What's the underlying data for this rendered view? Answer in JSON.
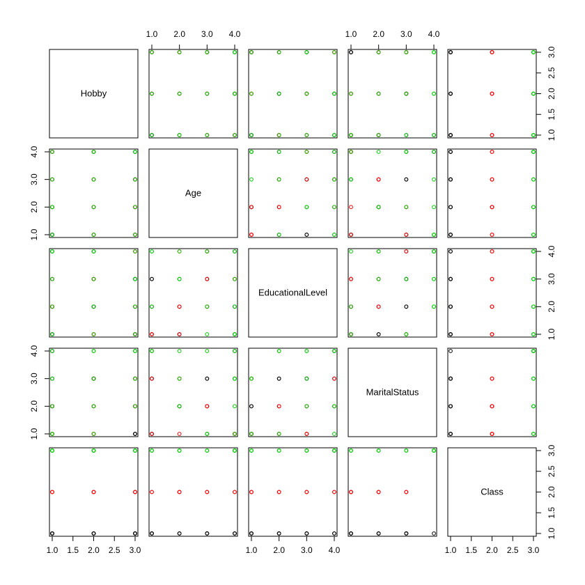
{
  "chart_data": {
    "type": "scatter",
    "subtype": "scatterplot-matrix",
    "variables": [
      "Hobby",
      "Age",
      "EducationalLevel",
      "MaritalStatus",
      "Class"
    ],
    "ranges": {
      "Hobby": [
        1,
        3
      ],
      "Age": [
        1,
        4
      ],
      "EducationalLevel": [
        1,
        4
      ],
      "MaritalStatus": [
        1,
        4
      ],
      "Class": [
        1,
        3
      ]
    },
    "ticks": {
      "Hobby": [
        "1.0",
        "1.5",
        "2.0",
        "2.5",
        "3.0"
      ],
      "Age": [
        "1.0",
        "2.0",
        "3.0",
        "4.0"
      ],
      "EducationalLevel": [
        "1.0",
        "2.0",
        "3.0",
        "4.0"
      ],
      "MaritalStatus": [
        "1.0",
        "2.0",
        "3.0",
        "4.0"
      ],
      "Class": [
        "1.0",
        "1.5",
        "2.0",
        "2.5",
        "3.0"
      ]
    },
    "class_colors": {
      "1": "#000000",
      "2": "#ff0000",
      "3": "#00cd00"
    },
    "points": [
      {
        "Hobby": 1,
        "Age": 1,
        "EducationalLevel": 1,
        "MaritalStatus": 1,
        "Class": 1
      },
      {
        "Hobby": 2,
        "Age": 2,
        "EducationalLevel": 2,
        "MaritalStatus": 2,
        "Class": 1
      },
      {
        "Hobby": 3,
        "Age": 3,
        "EducationalLevel": 3,
        "MaritalStatus": 3,
        "Class": 1
      },
      {
        "Hobby": 3,
        "Age": 3,
        "EducationalLevel": 2,
        "MaritalStatus": 1,
        "Class": 1
      },
      {
        "Hobby": 2,
        "Age": 1,
        "EducationalLevel": 3,
        "MaritalStatus": 3,
        "Class": 1
      },
      {
        "Hobby": 1,
        "Age": 2,
        "EducationalLevel": 1,
        "MaritalStatus": 2,
        "Class": 1
      },
      {
        "Hobby": 3,
        "Age": 1,
        "EducationalLevel": 3,
        "MaritalStatus": 1,
        "Class": 1
      },
      {
        "Hobby": 1,
        "Age": 4,
        "EducationalLevel": 4,
        "MaritalStatus": 4,
        "Class": 1
      },
      {
        "Hobby": 1,
        "Age": 1,
        "EducationalLevel": 2,
        "MaritalStatus": 3,
        "Class": 1
      },
      {
        "Hobby": 3,
        "Age": 2,
        "EducationalLevel": 1,
        "MaritalStatus": 2,
        "Class": 1
      },
      {
        "Hobby": 2,
        "Age": 3,
        "EducationalLevel": 4,
        "MaritalStatus": 3,
        "Class": 1
      },
      {
        "Hobby": 3,
        "Age": 4,
        "EducationalLevel": 1,
        "MaritalStatus": 1,
        "Class": 1
      },
      {
        "Hobby": 1,
        "Age": 3,
        "EducationalLevel": 3,
        "MaritalStatus": 2,
        "Class": 1
      },
      {
        "Hobby": 2,
        "Age": 4,
        "EducationalLevel": 2,
        "MaritalStatus": 3,
        "Class": 1
      },
      {
        "Hobby": 1,
        "Age": 2,
        "EducationalLevel": 2,
        "MaritalStatus": 1,
        "Class": 2
      },
      {
        "Hobby": 2,
        "Age": 3,
        "EducationalLevel": 3,
        "MaritalStatus": 2,
        "Class": 2
      },
      {
        "Hobby": 3,
        "Age": 1,
        "EducationalLevel": 1,
        "MaritalStatus": 3,
        "Class": 2
      },
      {
        "Hobby": 3,
        "Age": 2,
        "EducationalLevel": 2,
        "MaritalStatus": 2,
        "Class": 2
      },
      {
        "Hobby": 2,
        "Age": 4,
        "EducationalLevel": 3,
        "MaritalStatus": 1,
        "Class": 2
      },
      {
        "Hobby": 1,
        "Age": 3,
        "EducationalLevel": 2,
        "MaritalStatus": 2,
        "Class": 2
      },
      {
        "Hobby": 3,
        "Age": 2,
        "EducationalLevel": 4,
        "MaritalStatus": 3,
        "Class": 2
      },
      {
        "Hobby": 2,
        "Age": 1,
        "EducationalLevel": 1,
        "MaritalStatus": 1,
        "Class": 2
      },
      {
        "Hobby": 1,
        "Age": 4,
        "EducationalLevel": 3,
        "MaritalStatus": 1,
        "Class": 2
      },
      {
        "Hobby": 2,
        "Age": 2,
        "EducationalLevel": 1,
        "MaritalStatus": 3,
        "Class": 2
      },
      {
        "Hobby": 3,
        "Age": 3,
        "EducationalLevel": 4,
        "MaritalStatus": 2,
        "Class": 2
      },
      {
        "Hobby": 1,
        "Age": 1,
        "EducationalLevel": 4,
        "MaritalStatus": 4,
        "Class": 3
      },
      {
        "Hobby": 2,
        "Age": 2,
        "EducationalLevel": 3,
        "MaritalStatus": 4,
        "Class": 3
      },
      {
        "Hobby": 3,
        "Age": 4,
        "EducationalLevel": 1,
        "MaritalStatus": 3,
        "Class": 3
      },
      {
        "Hobby": 3,
        "Age": 3,
        "EducationalLevel": 2,
        "MaritalStatus": 4,
        "Class": 3
      },
      {
        "Hobby": 2,
        "Age": 4,
        "EducationalLevel": 4,
        "MaritalStatus": 2,
        "Class": 3
      },
      {
        "Hobby": 1,
        "Age": 4,
        "EducationalLevel": 2,
        "MaritalStatus": 1,
        "Class": 3
      },
      {
        "Hobby": 3,
        "Age": 1,
        "EducationalLevel": 4,
        "MaritalStatus": 4,
        "Class": 3
      },
      {
        "Hobby": 2,
        "Age": 1,
        "EducationalLevel": 2,
        "MaritalStatus": 4,
        "Class": 3
      },
      {
        "Hobby": 1,
        "Age": 2,
        "EducationalLevel": 4,
        "MaritalStatus": 2,
        "Class": 3
      },
      {
        "Hobby": 3,
        "Age": 4,
        "EducationalLevel": 3,
        "MaritalStatus": 4,
        "Class": 3
      },
      {
        "Hobby": 1,
        "Age": 3,
        "EducationalLevel": 1,
        "MaritalStatus": 1,
        "Class": 3
      },
      {
        "Hobby": 2,
        "Age": 3,
        "EducationalLevel": 4,
        "MaritalStatus": 1,
        "Class": 3
      },
      {
        "Hobby": 3,
        "Age": 2,
        "EducationalLevel": 3,
        "MaritalStatus": 2,
        "Class": 3
      },
      {
        "Hobby": 2,
        "Age": 4,
        "EducationalLevel": 1,
        "MaritalStatus": 3,
        "Class": 3
      },
      {
        "Hobby": 1,
        "Age": 2,
        "EducationalLevel": 3,
        "MaritalStatus": 3,
        "Class": 3
      }
    ]
  }
}
